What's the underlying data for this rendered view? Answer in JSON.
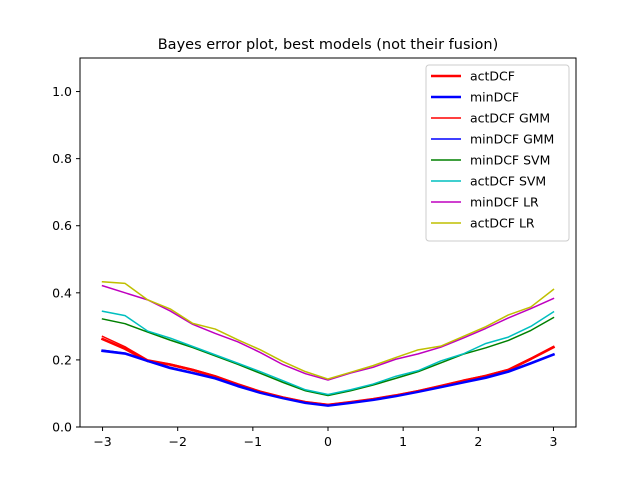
{
  "chart_data": {
    "type": "line",
    "title": "Bayes error plot, best models (not their fusion)",
    "xlabel": "",
    "ylabel": "",
    "xlim": [
      -3.3,
      3.3
    ],
    "ylim": [
      0.0,
      1.1
    ],
    "xticks": [
      -3,
      -2,
      -1,
      0,
      1,
      2,
      3
    ],
    "xtick_labels": [
      "−3",
      "−2",
      "−1",
      "0",
      "1",
      "2",
      "3"
    ],
    "yticks": [
      0.0,
      0.2,
      0.4,
      0.6,
      0.8,
      1.0
    ],
    "ytick_labels": [
      "0.0",
      "0.2",
      "0.4",
      "0.6",
      "0.8",
      "1.0"
    ],
    "grid": false,
    "legend_position": "top-right",
    "x": [
      -3.0,
      -2.7,
      -2.4,
      -2.1,
      -1.8,
      -1.5,
      -1.2,
      -0.9,
      -0.6,
      -0.3,
      0.0,
      0.3,
      0.6,
      0.9,
      1.2,
      1.5,
      1.8,
      2.1,
      2.4,
      2.7,
      3.0
    ],
    "series": [
      {
        "name": "actDCF",
        "color": "#ff0000",
        "line_width": 2.6,
        "values": [
          0.262,
          0.233,
          0.197,
          0.186,
          0.17,
          0.151,
          0.127,
          0.105,
          0.088,
          0.074,
          0.066,
          0.074,
          0.083,
          0.094,
          0.107,
          0.122,
          0.138,
          0.152,
          0.17,
          0.203,
          0.238
        ]
      },
      {
        "name": "minDCF",
        "color": "#0000ff",
        "line_width": 2.6,
        "values": [
          0.227,
          0.219,
          0.197,
          0.176,
          0.161,
          0.145,
          0.122,
          0.102,
          0.086,
          0.072,
          0.064,
          0.072,
          0.081,
          0.092,
          0.105,
          0.119,
          0.133,
          0.147,
          0.165,
          0.19,
          0.216
        ]
      },
      {
        "name": "actDCF GMM",
        "color": "#ff0000",
        "line_width": 1.5,
        "values": [
          0.27,
          0.239,
          0.2,
          0.188,
          0.172,
          0.152,
          0.128,
          0.106,
          0.089,
          0.075,
          0.067,
          0.075,
          0.084,
          0.095,
          0.108,
          0.123,
          0.139,
          0.154,
          0.172,
          0.205,
          0.24
        ]
      },
      {
        "name": "minDCF GMM",
        "color": "#0000ff",
        "line_width": 1.5,
        "values": [
          0.229,
          0.22,
          0.198,
          0.178,
          0.162,
          0.146,
          0.124,
          0.103,
          0.087,
          0.073,
          0.065,
          0.073,
          0.082,
          0.093,
          0.106,
          0.12,
          0.134,
          0.148,
          0.166,
          0.191,
          0.217
        ]
      },
      {
        "name": "minDCF SVM",
        "color": "#008000",
        "line_width": 1.5,
        "values": [
          0.322,
          0.308,
          0.283,
          0.259,
          0.237,
          0.212,
          0.187,
          0.16,
          0.133,
          0.108,
          0.094,
          0.108,
          0.125,
          0.145,
          0.165,
          0.191,
          0.217,
          0.236,
          0.258,
          0.288,
          0.326
        ]
      },
      {
        "name": "actDCF SVM",
        "color": "#00bfbf",
        "line_width": 1.5,
        "values": [
          0.345,
          0.332,
          0.286,
          0.265,
          0.24,
          0.215,
          0.19,
          0.165,
          0.138,
          0.111,
          0.097,
          0.111,
          0.128,
          0.151,
          0.168,
          0.197,
          0.218,
          0.249,
          0.268,
          0.3,
          0.343
        ]
      },
      {
        "name": "minDCF LR",
        "color": "#bf00bf",
        "line_width": 1.5,
        "values": [
          0.421,
          0.4,
          0.379,
          0.346,
          0.306,
          0.279,
          0.254,
          0.222,
          0.186,
          0.159,
          0.14,
          0.161,
          0.178,
          0.202,
          0.218,
          0.238,
          0.265,
          0.294,
          0.325,
          0.353,
          0.383
        ]
      },
      {
        "name": "actDCF LR",
        "color": "#bfbf00",
        "line_width": 1.5,
        "values": [
          0.433,
          0.428,
          0.379,
          0.352,
          0.309,
          0.292,
          0.26,
          0.23,
          0.195,
          0.165,
          0.143,
          0.163,
          0.183,
          0.207,
          0.23,
          0.241,
          0.27,
          0.299,
          0.334,
          0.358,
          0.41
        ]
      }
    ]
  }
}
